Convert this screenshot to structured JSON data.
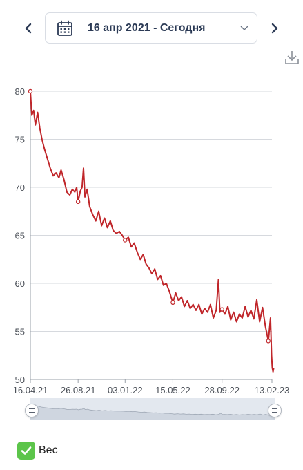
{
  "header": {
    "date_range": "16 апр 2021 - Сегодня",
    "prev_icon": "chevron-left-icon",
    "next_icon": "chevron-right-icon",
    "calendar_icon": "calendar-icon",
    "dropdown_icon": "chevron-down-icon",
    "download_icon": "download-icon"
  },
  "colors": {
    "accent": "#2b3a55",
    "series": "#c0262a",
    "check": "#5cc54a"
  },
  "legend": {
    "label": "Вес"
  },
  "navigator": {
    "start": 0,
    "end": 1
  },
  "chart_data": {
    "type": "line",
    "title": "",
    "xlabel": "",
    "ylabel": "",
    "ylim": [
      50,
      80
    ],
    "yticks": [
      "80",
      "75",
      "70",
      "65",
      "60",
      "55",
      "50"
    ],
    "xticks": [
      {
        "label": "16.04.21",
        "date": "2021-04-16"
      },
      {
        "label": "26.08.21",
        "date": "2021-08-26"
      },
      {
        "label": "03.01.22",
        "date": "2022-01-03"
      },
      {
        "label": "15.05.22",
        "date": "2022-05-15"
      },
      {
        "label": "28.09.22",
        "date": "2022-09-28"
      },
      {
        "label": "13.02.23",
        "date": "2023-02-13"
      }
    ],
    "grid": true,
    "series": [
      {
        "values": [
          [
            "2021-04-16",
            80.0
          ],
          [
            "2021-04-20",
            77.5
          ],
          [
            "2021-04-25",
            78.0
          ],
          [
            "2021-04-30",
            76.5
          ],
          [
            "2021-05-06",
            77.8
          ],
          [
            "2021-05-12",
            76.2
          ],
          [
            "2021-05-18",
            75.0
          ],
          [
            "2021-05-25",
            74.0
          ],
          [
            "2021-06-02",
            73.0
          ],
          [
            "2021-06-10",
            72.0
          ],
          [
            "2021-06-18",
            71.2
          ],
          [
            "2021-06-26",
            71.5
          ],
          [
            "2021-07-04",
            71.0
          ],
          [
            "2021-07-10",
            71.8
          ],
          [
            "2021-07-18",
            70.8
          ],
          [
            "2021-07-26",
            69.5
          ],
          [
            "2021-08-03",
            69.2
          ],
          [
            "2021-08-10",
            69.8
          ],
          [
            "2021-08-17",
            69.5
          ],
          [
            "2021-08-22",
            70.0
          ],
          [
            "2021-08-26",
            68.5
          ],
          [
            "2021-09-01",
            69.6
          ],
          [
            "2021-09-06",
            70.0
          ],
          [
            "2021-09-10",
            72.0
          ],
          [
            "2021-09-14",
            69.0
          ],
          [
            "2021-09-20",
            69.8
          ],
          [
            "2021-09-27",
            68.0
          ],
          [
            "2021-10-05",
            67.2
          ],
          [
            "2021-10-14",
            66.5
          ],
          [
            "2021-10-22",
            67.5
          ],
          [
            "2021-10-30",
            66.0
          ],
          [
            "2021-11-07",
            66.8
          ],
          [
            "2021-11-15",
            65.8
          ],
          [
            "2021-11-23",
            66.5
          ],
          [
            "2021-12-01",
            65.5
          ],
          [
            "2021-12-10",
            65.2
          ],
          [
            "2021-12-18",
            65.4
          ],
          [
            "2021-12-26",
            65.0
          ],
          [
            "2022-01-03",
            64.5
          ],
          [
            "2022-01-12",
            64.8
          ],
          [
            "2022-01-20",
            63.8
          ],
          [
            "2022-01-28",
            64.2
          ],
          [
            "2022-02-06",
            63.2
          ],
          [
            "2022-02-14",
            62.5
          ],
          [
            "2022-02-22",
            63.0
          ],
          [
            "2022-03-02",
            62.0
          ],
          [
            "2022-03-10",
            61.6
          ],
          [
            "2022-03-18",
            61.0
          ],
          [
            "2022-03-26",
            61.5
          ],
          [
            "2022-04-03",
            60.4
          ],
          [
            "2022-04-11",
            60.8
          ],
          [
            "2022-04-19",
            59.8
          ],
          [
            "2022-04-27",
            60.0
          ],
          [
            "2022-05-05",
            59.2
          ],
          [
            "2022-05-15",
            58.0
          ],
          [
            "2022-05-23",
            59.0
          ],
          [
            "2022-05-31",
            58.2
          ],
          [
            "2022-06-08",
            58.6
          ],
          [
            "2022-06-16",
            57.6
          ],
          [
            "2022-06-24",
            58.2
          ],
          [
            "2022-07-02",
            57.4
          ],
          [
            "2022-07-10",
            57.8
          ],
          [
            "2022-07-18",
            57.2
          ],
          [
            "2022-07-26",
            57.8
          ],
          [
            "2022-08-03",
            56.8
          ],
          [
            "2022-08-11",
            57.4
          ],
          [
            "2022-08-19",
            57.0
          ],
          [
            "2022-08-27",
            57.8
          ],
          [
            "2022-09-04",
            56.4
          ],
          [
            "2022-09-12",
            57.2
          ],
          [
            "2022-09-18",
            60.4
          ],
          [
            "2022-09-22",
            57.0
          ],
          [
            "2022-09-28",
            57.3
          ],
          [
            "2022-10-06",
            56.8
          ],
          [
            "2022-10-14",
            57.6
          ],
          [
            "2022-10-22",
            56.2
          ],
          [
            "2022-10-30",
            57.0
          ],
          [
            "2022-11-07",
            56.0
          ],
          [
            "2022-11-15",
            56.8
          ],
          [
            "2022-11-23",
            56.4
          ],
          [
            "2022-12-01",
            57.6
          ],
          [
            "2022-12-09",
            56.5
          ],
          [
            "2022-12-17",
            57.2
          ],
          [
            "2022-12-25",
            56.3
          ],
          [
            "2023-01-02",
            58.3
          ],
          [
            "2023-01-10",
            56.0
          ],
          [
            "2023-01-18",
            57.5
          ],
          [
            "2023-01-26",
            55.5
          ],
          [
            "2023-02-03",
            54.0
          ],
          [
            "2023-02-09",
            56.4
          ],
          [
            "2023-02-12",
            52.5
          ],
          [
            "2023-02-14",
            51.2
          ],
          [
            "2023-02-16",
            50.8
          ],
          [
            "2023-02-18",
            51.2
          ]
        ]
      }
    ],
    "markers": [
      [
        "2021-04-16",
        80.0
      ],
      [
        "2021-08-26",
        68.5
      ],
      [
        "2022-01-03",
        64.5
      ],
      [
        "2022-05-15",
        58.0
      ],
      [
        "2022-09-28",
        57.3
      ],
      [
        "2023-02-03",
        54.0
      ]
    ]
  }
}
